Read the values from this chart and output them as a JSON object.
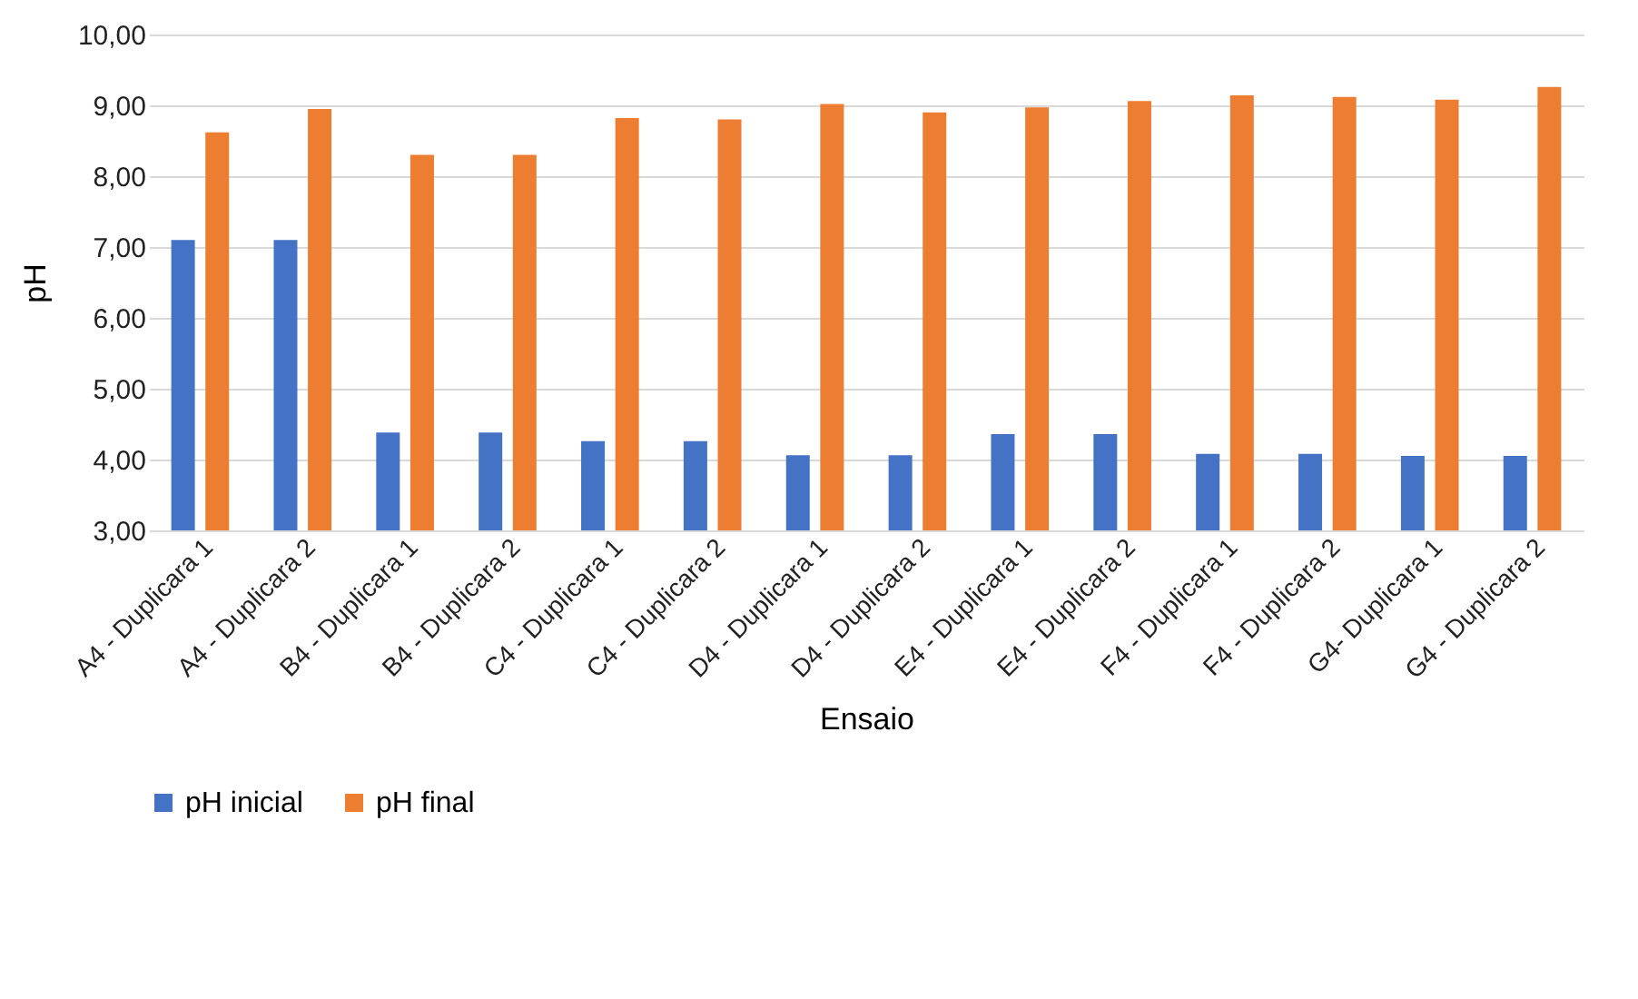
{
  "chart_data": {
    "type": "bar",
    "xlabel": "Ensaio",
    "ylabel": "pH",
    "categories": [
      "A4 - Duplicara 1",
      "A4 - Duplicara 2",
      "B4 - Duplicara 1",
      "B4 - Duplicara 2",
      "C4 - Duplicara 1",
      "C4 - Duplicara 2",
      "D4 - Duplicara 1",
      "D4 - Duplicara 2",
      "E4 - Duplicara 1",
      "E4 - Duplicara 2",
      "F4 - Duplicara 1",
      "F4 - Duplicara 2",
      "G4- Duplicara 1",
      "G4 - Duplicara 2"
    ],
    "series": [
      {
        "name": "pH inicial",
        "color": "#4472c4",
        "values": [
          7.1,
          7.1,
          4.38,
          4.38,
          4.26,
          4.26,
          4.06,
          4.06,
          4.36,
          4.36,
          4.08,
          4.08,
          4.05,
          4.05
        ]
      },
      {
        "name": "pH final",
        "color": "#ed7d31",
        "values": [
          8.62,
          8.95,
          8.3,
          8.3,
          8.82,
          8.8,
          9.02,
          8.9,
          8.97,
          9.06,
          9.14,
          9.12,
          9.08,
          9.26
        ]
      }
    ],
    "ylim": [
      3,
      10
    ],
    "yticks": [
      {
        "value": 3,
        "label": "3,00"
      },
      {
        "value": 4,
        "label": "4,00"
      },
      {
        "value": 5,
        "label": "5,00"
      },
      {
        "value": 6,
        "label": "6,00"
      },
      {
        "value": 7,
        "label": "7,00"
      },
      {
        "value": 8,
        "label": "8,00"
      },
      {
        "value": 9,
        "label": "9,00"
      },
      {
        "value": 10,
        "label": "10,00"
      }
    ],
    "grid": "y",
    "legend": "bottom"
  }
}
